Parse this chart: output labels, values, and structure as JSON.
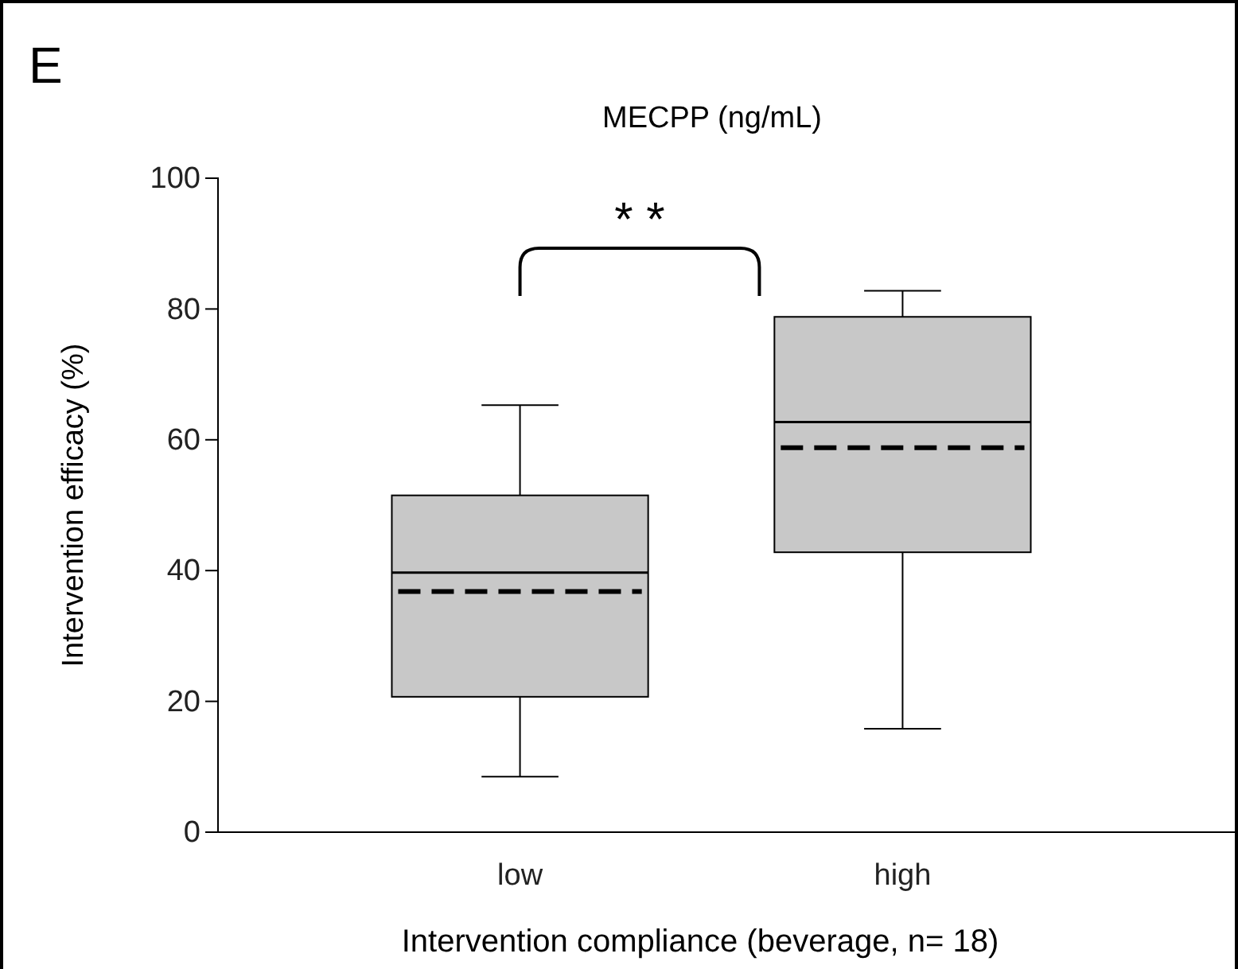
{
  "chart_data": {
    "type": "box",
    "title": "MECPP (ng/mL)",
    "xlabel": "Intervention compliance (beverage, n= 18)",
    "ylabel": "Intervention efficacy (%)",
    "categories": [
      "low",
      "high"
    ],
    "boxes": [
      {
        "low": 8.5,
        "q1": 20.7,
        "median": 39.7,
        "q3": 51.5,
        "high": 65.3,
        "mean": 36.8
      },
      {
        "low": 15.8,
        "q1": 42.8,
        "median": 62.7,
        "q3": 78.8,
        "high": 82.8,
        "mean": 58.8
      }
    ],
    "color": "#c8c8c8",
    "ylim": [
      0,
      100
    ],
    "yticks": [
      0,
      20,
      40,
      60,
      80,
      100
    ],
    "grid": false,
    "annotations": [
      "E",
      "* *"
    ]
  }
}
